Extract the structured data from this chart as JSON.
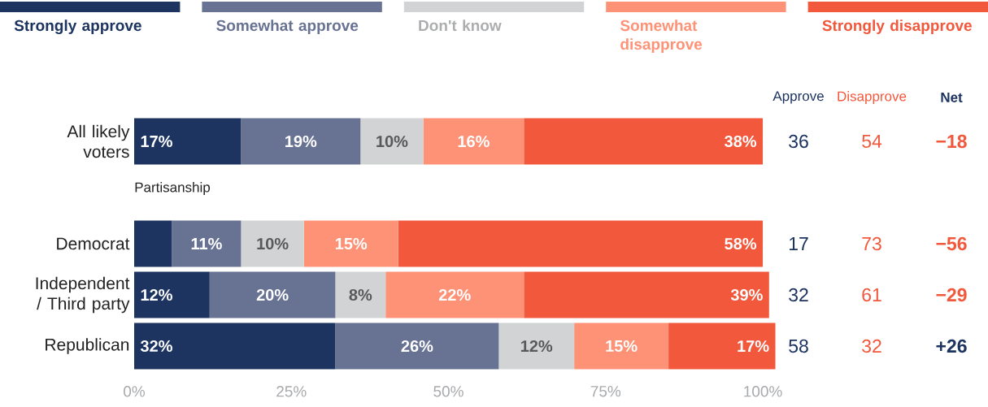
{
  "chart_data": {
    "type": "bar",
    "orientation": "horizontal",
    "stacked": true,
    "legend": "top",
    "categories": [
      "All likely voters",
      "Democrat",
      "Independent / Third party",
      "Republican"
    ],
    "series": [
      {
        "name": "Strongly approve",
        "color": "#1d3461",
        "values": [
          17,
          6,
          12,
          32
        ],
        "value_labels": [
          "17%",
          null,
          "12%",
          "32%"
        ]
      },
      {
        "name": "Somewhat approve",
        "color": "#687292",
        "values": [
          19,
          11,
          20,
          26
        ],
        "value_labels": [
          "19%",
          "11%",
          "20%",
          "26%"
        ]
      },
      {
        "name": "Don't know",
        "color": "#d1d3d4",
        "values": [
          10,
          10,
          8,
          12
        ],
        "value_labels": [
          "10%",
          "10%",
          "8%",
          "12%"
        ]
      },
      {
        "name": "Somewhat disapprove",
        "color": "#fd9277",
        "values": [
          16,
          15,
          22,
          15
        ],
        "value_labels": [
          "16%",
          "15%",
          "22%",
          "15%"
        ]
      },
      {
        "name": "Strongly disapprove",
        "color": "#f1583c",
        "values": [
          38,
          58,
          39,
          17
        ],
        "value_labels": [
          "38%",
          "58%",
          "39%",
          "17%"
        ]
      }
    ],
    "xlim": [
      0,
      102
    ],
    "xticks": [
      {
        "value": 0,
        "label": "0%"
      },
      {
        "value": 25,
        "label": "25%"
      },
      {
        "value": 50,
        "label": "50%"
      },
      {
        "value": 75,
        "label": "75%"
      },
      {
        "value": 100,
        "label": "100%"
      }
    ],
    "annotations": [
      "Partisanship",
      "Approve",
      "Disapprove",
      "Net",
      "36",
      "54",
      "−18",
      "17",
      "73",
      "−56",
      "32",
      "61",
      "−29",
      "58",
      "32",
      "+26"
    ]
  }
}
